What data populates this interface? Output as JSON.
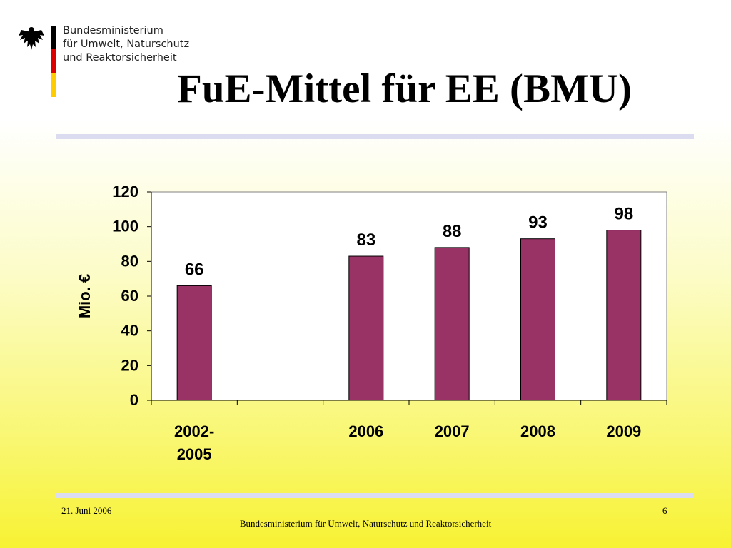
{
  "header": {
    "ministry_lines": [
      "Bundesministerium",
      "für Umwelt, Naturschutz",
      "und Reaktorsicherheit"
    ],
    "title": "FuE-Mittel für EE (BMU)"
  },
  "chart_data": {
    "type": "bar",
    "ylabel": "Mio. €",
    "ylim": [
      0,
      120
    ],
    "yticks": [
      0,
      20,
      40,
      60,
      80,
      100,
      120
    ],
    "categories": [
      "2002-2005",
      "",
      "2006",
      "2007",
      "2008",
      "2009"
    ],
    "category_label_lines": [
      [
        "2002-",
        "2005"
      ],
      [],
      [
        "2006"
      ],
      [
        "2007"
      ],
      [
        "2008"
      ],
      [
        "2009"
      ]
    ],
    "values": [
      66,
      null,
      83,
      88,
      93,
      98
    ],
    "bar_color": "#993366",
    "grid": false
  },
  "footer": {
    "date": "21. Juni 2006",
    "page": "6",
    "organization": "Bundesministerium für Umwelt, Naturschutz und Reaktorsicherheit"
  }
}
